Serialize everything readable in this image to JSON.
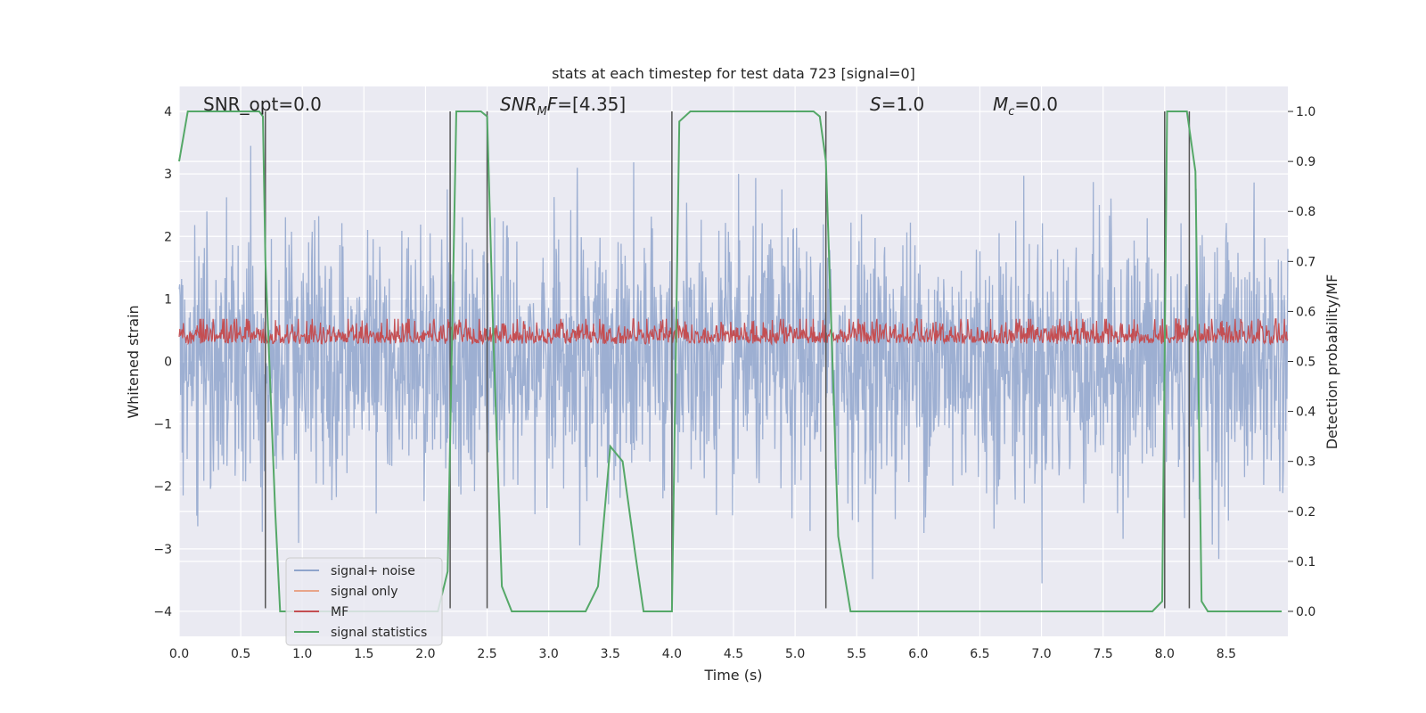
{
  "chart_data": {
    "type": "line",
    "title": "stats at each timestep for test data 723 [signal=0]",
    "xlabel": "Time (s)",
    "ylabel": "Whitened strain",
    "ylabel_right": "Detection probability/MF",
    "xlim": [
      0,
      9.0
    ],
    "ylim": [
      -4.4,
      4.4
    ],
    "ylim_right": [
      -0.05,
      1.05
    ],
    "xticks": [
      "0.0",
      "0.5",
      "1.0",
      "1.5",
      "2.0",
      "2.5",
      "3.0",
      "3.5",
      "4.0",
      "4.5",
      "5.0",
      "5.5",
      "6.0",
      "6.5",
      "7.0",
      "7.5",
      "8.0",
      "8.5"
    ],
    "yticks": [
      "4",
      "3",
      "2",
      "1",
      "0",
      "−1",
      "−2",
      "−3",
      "−4"
    ],
    "yticks_right": [
      "1.0",
      "0.9",
      "0.8",
      "0.7",
      "0.6",
      "0.5",
      "0.4",
      "0.3",
      "0.2",
      "0.1",
      "0.0"
    ],
    "grid": true,
    "legend_position": "lower-left",
    "annotations": [
      {
        "text": "SNR_opt=0.0",
        "x": 0.2
      },
      {
        "text": "SNR_MF=[4.35]",
        "x": 2.6
      },
      {
        "text": "S=1.0",
        "x": 5.6
      },
      {
        "text": "M_c=0.0",
        "x": 6.6
      }
    ],
    "series": [
      {
        "name": "signal+ noise",
        "color": "#8fa4cc",
        "axis": "left",
        "description_values": {
          "mean": 0.0,
          "std": 1.0,
          "duration_s": 9.0
        }
      },
      {
        "name": "signal only",
        "color": "#e8a58a",
        "axis": "left",
        "values": []
      },
      {
        "name": "MF",
        "color": "#c44e52",
        "axis": "right",
        "description_values": {
          "mean": 0.54,
          "min": 0.5,
          "max": 0.6
        }
      },
      {
        "name": "signal statistics",
        "color": "#55a868",
        "axis": "right",
        "x": [
          0.0,
          0.07,
          0.15,
          0.5,
          0.65,
          0.68,
          0.7,
          0.78,
          0.82,
          1.0,
          2.0,
          2.1,
          2.18,
          2.25,
          2.45,
          2.5,
          2.55,
          2.62,
          2.7,
          3.3,
          3.4,
          3.5,
          3.6,
          3.7,
          3.77,
          3.85,
          4.0,
          4.06,
          4.15,
          5.15,
          5.2,
          5.25,
          5.35,
          5.45,
          7.9,
          7.98,
          8.02,
          8.05,
          8.1,
          8.18,
          8.25,
          8.3,
          8.35,
          8.95
        ],
        "y": [
          0.9,
          1.0,
          1.0,
          1.0,
          1.0,
          0.99,
          0.7,
          0.2,
          0.0,
          0.0,
          0.0,
          0.0,
          0.08,
          1.0,
          1.0,
          0.99,
          0.55,
          0.05,
          0.0,
          0.0,
          0.05,
          0.33,
          0.3,
          0.12,
          0.0,
          0.0,
          0.0,
          0.98,
          1.0,
          1.0,
          0.99,
          0.9,
          0.15,
          0.0,
          0.0,
          0.02,
          1.0,
          1.0,
          1.0,
          1.0,
          0.88,
          0.02,
          0.0,
          0.0
        ]
      },
      {
        "name": "vertical markers",
        "color": "#555555",
        "axis": "left",
        "x": [
          0.7,
          2.2,
          2.5,
          4.0,
          5.25,
          8.0,
          8.2
        ]
      }
    ]
  },
  "legend": [
    {
      "label": "signal+ noise",
      "color": "#8fa4cc"
    },
    {
      "label": "signal only",
      "color": "#e8a58a"
    },
    {
      "label": "MF",
      "color": "#c44e52"
    },
    {
      "label": "signal statistics",
      "color": "#55a868"
    }
  ]
}
